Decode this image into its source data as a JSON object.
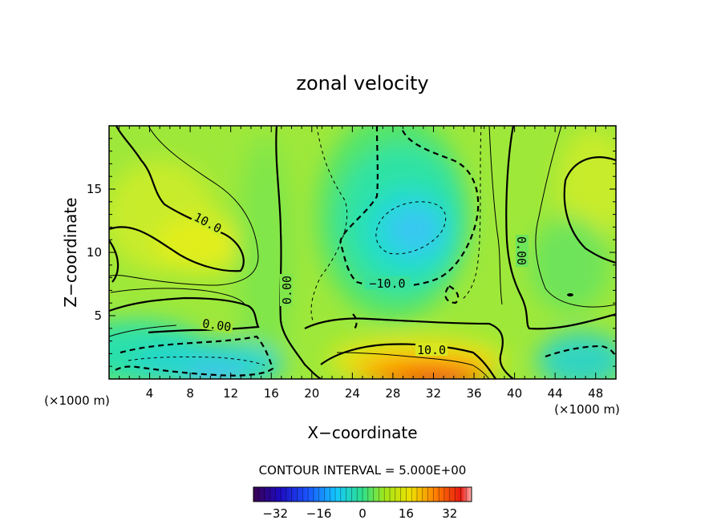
{
  "chart_data": {
    "type": "heatmap",
    "title": "zonal velocity",
    "xlabel": "X−coordinate",
    "ylabel": "Z−coordinate",
    "x_unit_label": "(×1000 m)",
    "z_unit_label": "(×1000 m)",
    "xlim": [
      0,
      50
    ],
    "ylim": [
      0,
      20
    ],
    "x_ticks": [
      "4",
      "8",
      "12",
      "16",
      "20",
      "24",
      "28",
      "32",
      "36",
      "40",
      "44",
      "48"
    ],
    "y_ticks": [
      "5",
      "10",
      "15"
    ],
    "contour_interval_text": "CONTOUR INTERVAL = 5.000E+00",
    "colorbar": {
      "range": [
        -40,
        40
      ],
      "ticks": [
        "−32",
        "−16",
        "0",
        "16",
        "32"
      ],
      "colormap": "rainbow"
    },
    "contour_labels": [
      {
        "text": "10.0",
        "x": 9,
        "z": 11.5
      },
      {
        "text": "0.00",
        "x": 17.5,
        "z": 7
      },
      {
        "text": "0.00",
        "x": 10,
        "z": 4
      },
      {
        "text": "−10.0",
        "x": 27,
        "z": 7.4
      },
      {
        "text": "0.00",
        "x": 40.5,
        "z": 10
      },
      {
        "text": "10.0",
        "x": 32,
        "z": 2.3
      }
    ],
    "features": [
      {
        "kind": "max",
        "x": 32,
        "z": 0.3,
        "value": 30
      },
      {
        "kind": "min",
        "x": 29.5,
        "z": 12,
        "value": -15
      },
      {
        "kind": "max",
        "x": 9,
        "z": 10.5,
        "value": 15
      },
      {
        "kind": "min",
        "x": 10,
        "z": 0.3,
        "value": -12
      },
      {
        "kind": "min",
        "x": 46.5,
        "z": 1,
        "value": -12
      }
    ]
  }
}
